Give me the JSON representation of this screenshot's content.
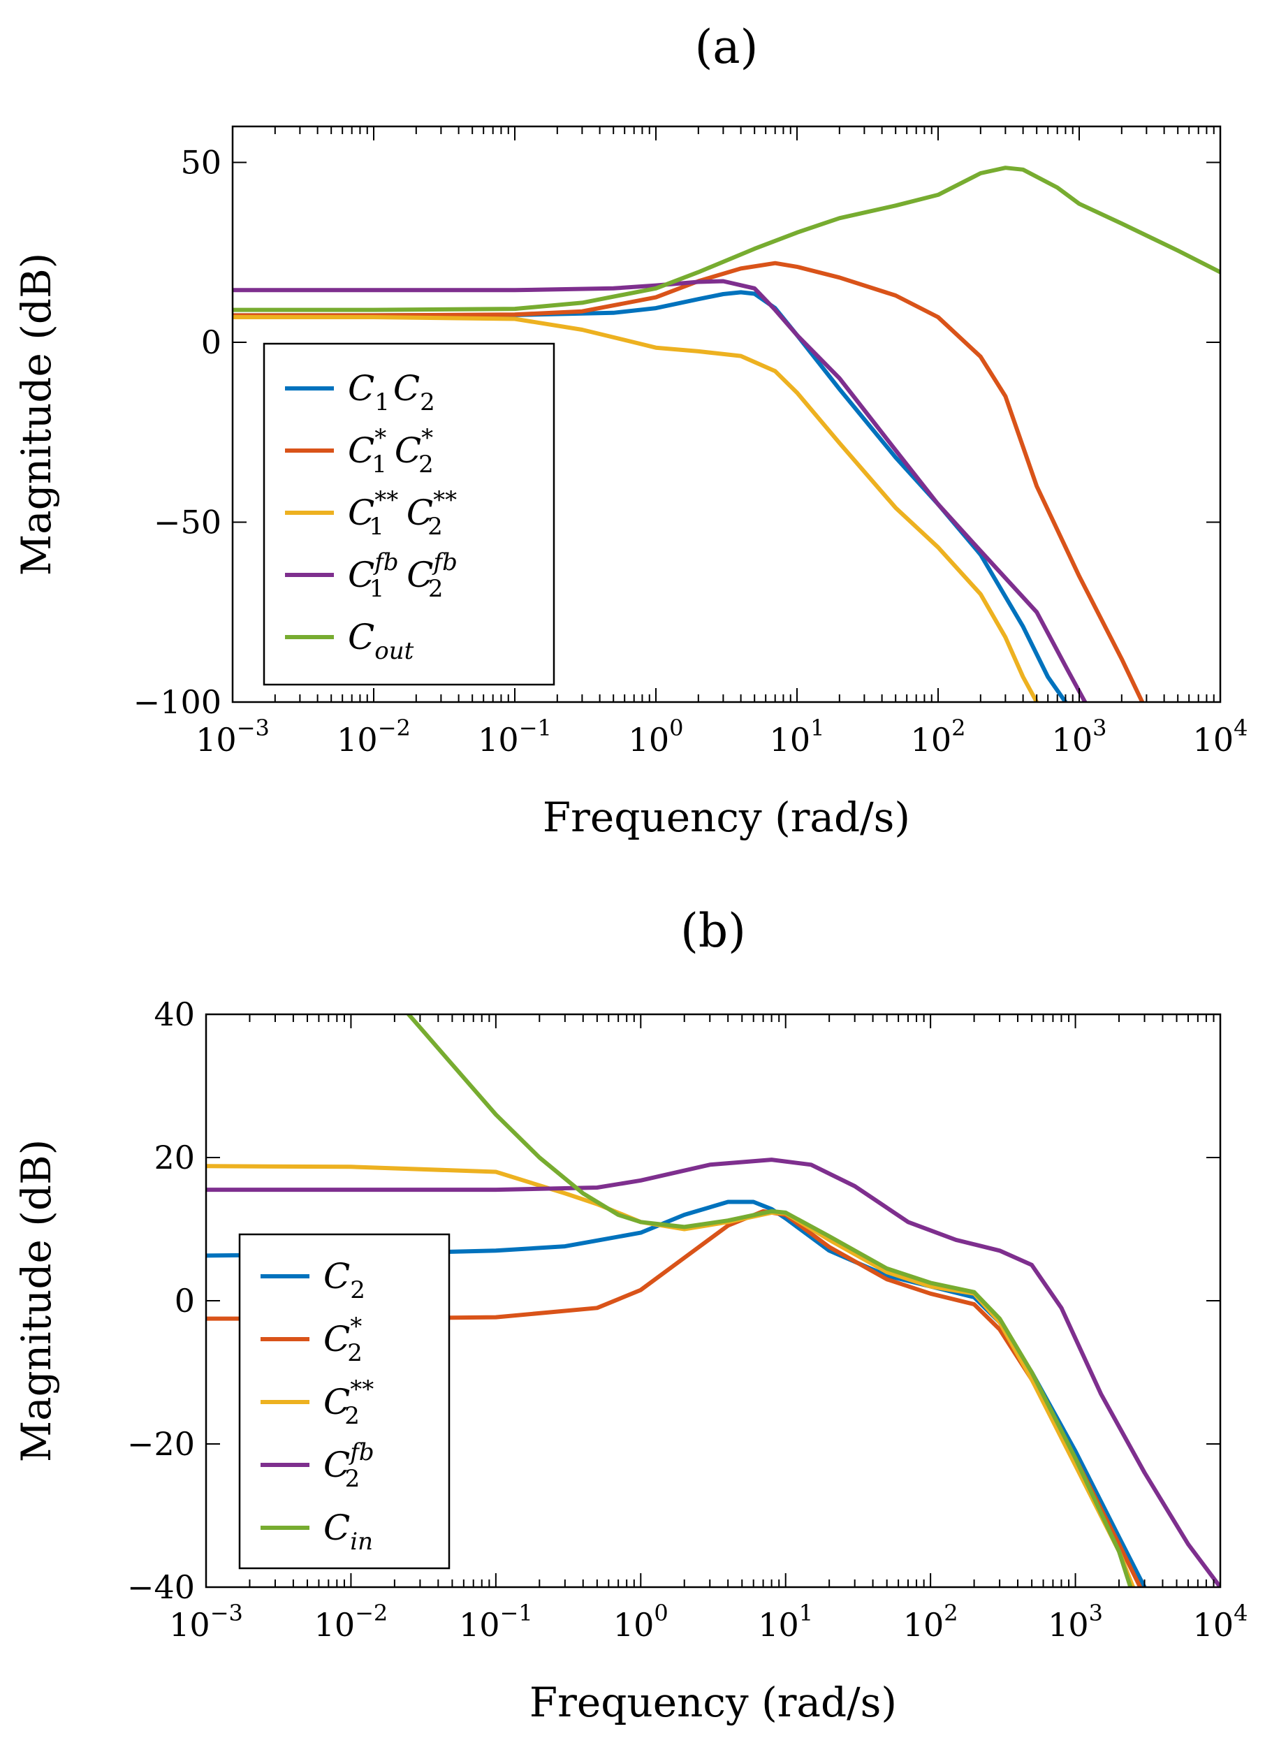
{
  "chart_data": [
    {
      "type": "line",
      "title": "(a)",
      "xlabel": "Frequency (rad/s)",
      "ylabel": "Magnitude (dB)",
      "xscale": "log",
      "xlim": [
        0.001,
        10000
      ],
      "ylim": [
        -100,
        60
      ],
      "xticks": [
        {
          "base": "10",
          "exp": "−3"
        },
        {
          "base": "10",
          "exp": "−2"
        },
        {
          "base": "10",
          "exp": "−1"
        },
        {
          "base": "10",
          "exp": "0"
        },
        {
          "base": "10",
          "exp": "1"
        },
        {
          "base": "10",
          "exp": "2"
        },
        {
          "base": "10",
          "exp": "3"
        },
        {
          "base": "10",
          "exp": "4"
        }
      ],
      "yticks": [
        {
          "value": 50,
          "label": "50"
        },
        {
          "value": 0,
          "label": "0"
        },
        {
          "value": -50,
          "label": "−50"
        },
        {
          "value": -100,
          "label": "−100"
        }
      ],
      "legend_position": "lower-left",
      "series": [
        {
          "name": "C1C2",
          "label": [
            {
              "t": "C"
            },
            {
              "t": "1",
              "sub": true
            },
            {
              "t": "C"
            },
            {
              "t": "2",
              "sub": true
            }
          ],
          "color": "#0072BD",
          "points": [
            [
              0.001,
              7.5
            ],
            [
              0.01,
              7.5
            ],
            [
              0.1,
              7.6
            ],
            [
              0.5,
              8.2
            ],
            [
              1,
              9.5
            ],
            [
              2,
              12
            ],
            [
              3,
              13.4
            ],
            [
              4,
              13.9
            ],
            [
              5,
              13.5
            ],
            [
              7,
              9.5
            ],
            [
              10,
              2
            ],
            [
              20,
              -13
            ],
            [
              50,
              -32
            ],
            [
              100,
              -45
            ],
            [
              200,
              -59
            ],
            [
              400,
              -79
            ],
            [
              600,
              -93
            ],
            [
              800,
              -100
            ]
          ]
        },
        {
          "name": "C1*C2*",
          "label": [
            {
              "t": "C"
            },
            {
              "t": "1",
              "sub": true,
              "sup": "*"
            },
            {
              "t": "C"
            },
            {
              "t": "2",
              "sub": true,
              "sup": "*"
            }
          ],
          "color": "#D95319",
          "points": [
            [
              0.001,
              7.5
            ],
            [
              0.01,
              7.5
            ],
            [
              0.1,
              7.7
            ],
            [
              0.3,
              8.6
            ],
            [
              1,
              12.5
            ],
            [
              2,
              17
            ],
            [
              4,
              20.5
            ],
            [
              7,
              22
            ],
            [
              10,
              21
            ],
            [
              20,
              18
            ],
            [
              50,
              13
            ],
            [
              100,
              7
            ],
            [
              200,
              -4
            ],
            [
              300,
              -15
            ],
            [
              500,
              -40
            ],
            [
              1000,
              -65
            ],
            [
              2000,
              -88
            ],
            [
              2800,
              -100
            ]
          ]
        },
        {
          "name": "C1**C2**",
          "label": [
            {
              "t": "C"
            },
            {
              "t": "1",
              "sub": true,
              "sup": "**"
            },
            {
              "t": "C"
            },
            {
              "t": "2",
              "sub": true,
              "sup": "**"
            }
          ],
          "color": "#EDB120",
          "points": [
            [
              0.001,
              7
            ],
            [
              0.01,
              7
            ],
            [
              0.1,
              6.5
            ],
            [
              0.3,
              3.5
            ],
            [
              0.7,
              0
            ],
            [
              1,
              -1.5
            ],
            [
              2,
              -2.5
            ],
            [
              4,
              -3.8
            ],
            [
              7,
              -8
            ],
            [
              10,
              -14
            ],
            [
              20,
              -28
            ],
            [
              50,
              -46
            ],
            [
              100,
              -57
            ],
            [
              200,
              -70
            ],
            [
              300,
              -82
            ],
            [
              400,
              -93
            ],
            [
              500,
              -100
            ]
          ]
        },
        {
          "name": "C1fbC2fb",
          "label": [
            {
              "t": "C"
            },
            {
              "t": "1",
              "sub": true,
              "sup": "fb"
            },
            {
              "t": "C"
            },
            {
              "t": "2",
              "sub": true,
              "sup": "fb"
            }
          ],
          "color": "#7E2F8E",
          "points": [
            [
              0.001,
              14.5
            ],
            [
              0.01,
              14.5
            ],
            [
              0.1,
              14.5
            ],
            [
              0.5,
              15
            ],
            [
              1,
              15.8
            ],
            [
              2,
              16.8
            ],
            [
              3,
              17
            ],
            [
              5,
              15
            ],
            [
              7,
              9
            ],
            [
              10,
              2
            ],
            [
              20,
              -10
            ],
            [
              50,
              -30
            ],
            [
              100,
              -45
            ],
            [
              200,
              -58
            ],
            [
              500,
              -75
            ],
            [
              800,
              -90
            ],
            [
              1100,
              -100
            ]
          ]
        },
        {
          "name": "Cout",
          "label": [
            {
              "t": "C"
            },
            {
              "t": "out",
              "sub": true
            }
          ],
          "color": "#77AC30",
          "points": [
            [
              0.001,
              9
            ],
            [
              0.01,
              9
            ],
            [
              0.1,
              9.3
            ],
            [
              0.3,
              11
            ],
            [
              1,
              15
            ],
            [
              2,
              19.5
            ],
            [
              5,
              26
            ],
            [
              10,
              30.5
            ],
            [
              20,
              34.5
            ],
            [
              50,
              38
            ],
            [
              100,
              41
            ],
            [
              200,
              47
            ],
            [
              300,
              48.5
            ],
            [
              400,
              48
            ],
            [
              700,
              43
            ],
            [
              1000,
              38.5
            ],
            [
              2000,
              33
            ],
            [
              5000,
              25.5
            ],
            [
              10000,
              19.5
            ]
          ]
        }
      ]
    },
    {
      "type": "line",
      "title": "(b)",
      "xlabel": "Frequency (rad/s)",
      "ylabel": "Magnitude (dB)",
      "xscale": "log",
      "xlim": [
        0.001,
        10000
      ],
      "ylim": [
        -40,
        40
      ],
      "xticks": [
        {
          "base": "10",
          "exp": "−3"
        },
        {
          "base": "10",
          "exp": "−2"
        },
        {
          "base": "10",
          "exp": "−1"
        },
        {
          "base": "10",
          "exp": "0"
        },
        {
          "base": "10",
          "exp": "1"
        },
        {
          "base": "10",
          "exp": "2"
        },
        {
          "base": "10",
          "exp": "3"
        },
        {
          "base": "10",
          "exp": "4"
        }
      ],
      "yticks": [
        {
          "value": 40,
          "label": "40"
        },
        {
          "value": 20,
          "label": "20"
        },
        {
          "value": 0,
          "label": "0"
        },
        {
          "value": -20,
          "label": "−20"
        },
        {
          "value": -40,
          "label": "−40"
        }
      ],
      "legend_position": "lower-left",
      "series": [
        {
          "name": "C2",
          "label": [
            {
              "t": "C"
            },
            {
              "t": "2",
              "sub": true
            }
          ],
          "color": "#0072BD",
          "points": [
            [
              0.001,
              6.3
            ],
            [
              0.01,
              6.5
            ],
            [
              0.1,
              7
            ],
            [
              0.3,
              7.6
            ],
            [
              1,
              9.5
            ],
            [
              2,
              12
            ],
            [
              4,
              13.8
            ],
            [
              6,
              13.8
            ],
            [
              8,
              12.8
            ],
            [
              10,
              11.5
            ],
            [
              20,
              7
            ],
            [
              50,
              3.5
            ],
            [
              100,
              2
            ],
            [
              200,
              0.5
            ],
            [
              300,
              -3
            ],
            [
              500,
              -10
            ],
            [
              1000,
              -21
            ],
            [
              2000,
              -33
            ],
            [
              3000,
              -40
            ]
          ]
        },
        {
          "name": "C2*",
          "label": [
            {
              "t": "C"
            },
            {
              "t": "2",
              "sub": true,
              "sup": "*"
            }
          ],
          "color": "#D95319",
          "points": [
            [
              0.001,
              -2.5
            ],
            [
              0.01,
              -2.5
            ],
            [
              0.1,
              -2.3
            ],
            [
              0.5,
              -1
            ],
            [
              1,
              1.5
            ],
            [
              2,
              6
            ],
            [
              4,
              10.5
            ],
            [
              7,
              12.5
            ],
            [
              10,
              12
            ],
            [
              20,
              7.5
            ],
            [
              50,
              3
            ],
            [
              100,
              1
            ],
            [
              200,
              -0.5
            ],
            [
              300,
              -4
            ],
            [
              500,
              -11
            ],
            [
              1000,
              -22
            ],
            [
              2000,
              -34
            ],
            [
              2800,
              -40
            ]
          ]
        },
        {
          "name": "C2**",
          "label": [
            {
              "t": "C"
            },
            {
              "t": "2",
              "sub": true,
              "sup": "**"
            }
          ],
          "color": "#EDB120",
          "points": [
            [
              0.001,
              18.8
            ],
            [
              0.01,
              18.7
            ],
            [
              0.1,
              18
            ],
            [
              0.3,
              15
            ],
            [
              0.5,
              13.5
            ],
            [
              1,
              11
            ],
            [
              2,
              10
            ],
            [
              4,
              11
            ],
            [
              8,
              12.3
            ],
            [
              10,
              12.2
            ],
            [
              20,
              8.5
            ],
            [
              50,
              4
            ],
            [
              100,
              2
            ],
            [
              200,
              1
            ],
            [
              300,
              -3
            ],
            [
              500,
              -11
            ],
            [
              1000,
              -23
            ],
            [
              2000,
              -35
            ],
            [
              2500,
              -40
            ]
          ]
        },
        {
          "name": "C2fb",
          "label": [
            {
              "t": "C"
            },
            {
              "t": "2",
              "sub": true,
              "sup": "fb"
            }
          ],
          "color": "#7E2F8E",
          "points": [
            [
              0.001,
              15.5
            ],
            [
              0.01,
              15.5
            ],
            [
              0.1,
              15.5
            ],
            [
              0.5,
              15.8
            ],
            [
              1,
              16.8
            ],
            [
              3,
              19
            ],
            [
              8,
              19.7
            ],
            [
              15,
              19
            ],
            [
              30,
              16
            ],
            [
              70,
              11
            ],
            [
              150,
              8.5
            ],
            [
              300,
              7
            ],
            [
              500,
              5
            ],
            [
              800,
              -1
            ],
            [
              1500,
              -13
            ],
            [
              3000,
              -24
            ],
            [
              6000,
              -34
            ],
            [
              10000,
              -40
            ]
          ]
        },
        {
          "name": "Cin",
          "label": [
            {
              "t": "C"
            },
            {
              "t": "in",
              "sub": true
            }
          ],
          "color": "#77AC30",
          "points": [
            [
              0.025,
              40
            ],
            [
              0.05,
              33
            ],
            [
              0.1,
              26
            ],
            [
              0.2,
              20
            ],
            [
              0.4,
              15
            ],
            [
              0.7,
              12
            ],
            [
              1,
              11
            ],
            [
              2,
              10.3
            ],
            [
              4,
              11.2
            ],
            [
              8,
              12.5
            ],
            [
              10,
              12.3
            ],
            [
              20,
              9
            ],
            [
              50,
              4.5
            ],
            [
              100,
              2.5
            ],
            [
              200,
              1.2
            ],
            [
              300,
              -2.5
            ],
            [
              500,
              -10
            ],
            [
              1000,
              -22
            ],
            [
              2000,
              -35
            ],
            [
              2400,
              -40
            ]
          ]
        }
      ]
    }
  ]
}
